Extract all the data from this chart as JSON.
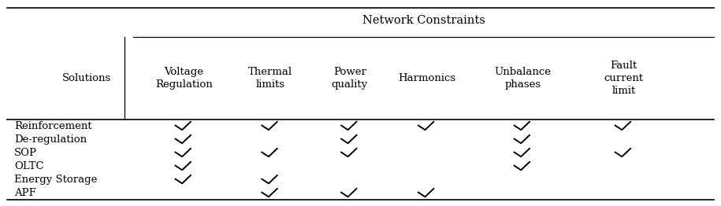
{
  "title": "Network Constraints",
  "solutions_header": "Solutions",
  "col_headers": [
    "Voltage\nRegulation",
    "Thermal\nlimits",
    "Power\nquality",
    "Harmonics",
    "Unbalance\nphases",
    "Fault\ncurrent\nlimit"
  ],
  "rows": [
    {
      "label": "Reinforcement",
      "checks": [
        1,
        1,
        1,
        1,
        1,
        1
      ]
    },
    {
      "label": "De-regulation",
      "checks": [
        1,
        0,
        1,
        0,
        1,
        0
      ]
    },
    {
      "label": "SOP",
      "checks": [
        1,
        1,
        1,
        0,
        1,
        1
      ]
    },
    {
      "label": "OLTC",
      "checks": [
        1,
        0,
        0,
        0,
        1,
        0
      ]
    },
    {
      "label": "Energy Storage",
      "checks": [
        1,
        1,
        0,
        0,
        0,
        0
      ]
    },
    {
      "label": "APF",
      "checks": [
        0,
        1,
        1,
        1,
        0,
        0
      ]
    }
  ],
  "figsize": [
    9.15,
    2.62
  ],
  "dpi": 100,
  "bg_color": "#ffffff",
  "text_color": "#000000",
  "line_color": "#000000",
  "font_family": "DejaVu Serif",
  "header_fontsize": 9.5,
  "cell_fontsize": 9.5,
  "title_fontsize": 10.5,
  "check_fontsize": 11
}
